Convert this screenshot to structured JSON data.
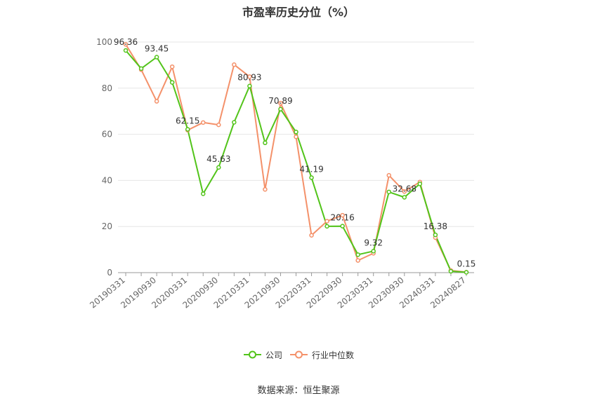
{
  "chart_data": {
    "type": "line",
    "title": "市盈率历史分位（%）",
    "x": [
      "20190331",
      "20190630",
      "20190930",
      "20191231",
      "20200331",
      "20200630",
      "20200930",
      "20201231",
      "20210331",
      "20210630",
      "20210930",
      "20211231",
      "20220331",
      "20220630",
      "20220930",
      "20221231",
      "20230331",
      "20230630",
      "20230930",
      "20231231",
      "20240331",
      "20240630",
      "20240827"
    ],
    "x_tick_labels": [
      "20190331",
      "20190930",
      "20200331",
      "20200930",
      "20210331",
      "20210930",
      "20220331",
      "20220930",
      "20230331",
      "20230930",
      "20240331",
      "20240827"
    ],
    "ylim": [
      0,
      100
    ],
    "y_ticks": [
      0,
      20,
      40,
      60,
      80,
      100
    ],
    "grid": true,
    "legend_position": "bottom",
    "series": [
      {
        "name": "公司",
        "color": "#52c41a",
        "values": [
          96.36,
          88.5,
          93.45,
          82.5,
          62.15,
          34.2,
          45.63,
          65.2,
          80.93,
          56.3,
          70.89,
          61.0,
          41.19,
          20.1,
          20.16,
          7.8,
          9.32,
          35.0,
          32.68,
          38.5,
          16.38,
          0.6,
          0.15
        ]
      },
      {
        "name": "行业中位数",
        "color": "#f4916a",
        "values": [
          99.0,
          88.0,
          74.3,
          89.3,
          61.8,
          65.1,
          64.1,
          90.2,
          85.0,
          36.1,
          73.5,
          58.9,
          16.2,
          22.3,
          24.9,
          5.3,
          8.4,
          42.2,
          35.2,
          39.3,
          15.2,
          0.9,
          0.2
        ]
      }
    ],
    "data_labels": [
      {
        "index": 0,
        "text": "96.36"
      },
      {
        "index": 2,
        "text": "93.45"
      },
      {
        "index": 4,
        "text": "62.15"
      },
      {
        "index": 6,
        "text": "45.63"
      },
      {
        "index": 8,
        "text": "80.93"
      },
      {
        "index": 10,
        "text": "70.89"
      },
      {
        "index": 12,
        "text": "41.19"
      },
      {
        "index": 14,
        "text": "20.16"
      },
      {
        "index": 16,
        "text": "9.32"
      },
      {
        "index": 18,
        "text": "32.68"
      },
      {
        "index": 20,
        "text": "16.38"
      },
      {
        "index": 22,
        "text": "0.15"
      }
    ]
  },
  "legend": {
    "company_label": "公司",
    "industry_label": "行业中位数"
  },
  "footer": {
    "source": "数据来源：恒生聚源"
  }
}
